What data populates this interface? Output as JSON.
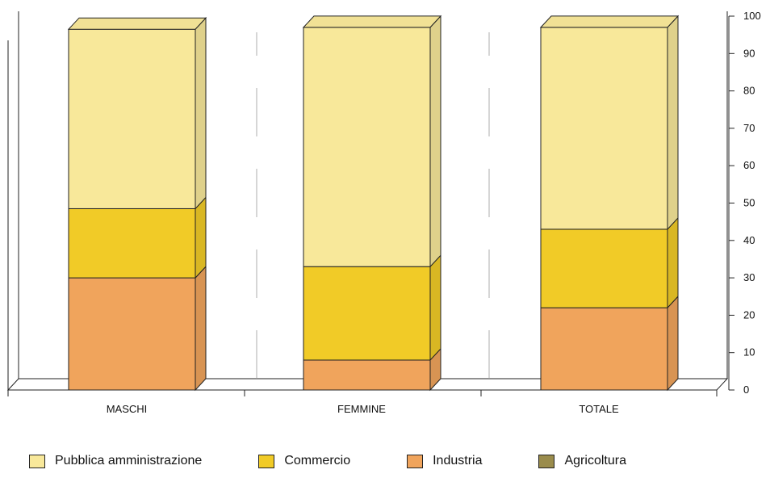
{
  "chart_data": {
    "type": "bar",
    "stacked": true,
    "categories": [
      "MASCHI",
      "FEMMINE",
      "TOTALE"
    ],
    "series": [
      {
        "name": "Agricoltura",
        "values": [
          0,
          0,
          0
        ]
      },
      {
        "name": "Industria",
        "values": [
          30,
          8,
          22
        ]
      },
      {
        "name": "Commercio",
        "values": [
          18.5,
          25,
          21
        ]
      },
      {
        "name": "Pubblica amministrazione",
        "values": [
          48,
          64,
          54
        ]
      }
    ],
    "title": "",
    "xlabel": "",
    "ylabel": "",
    "ylim": [
      0,
      100
    ],
    "yticks": [
      "0",
      "10",
      "20",
      "30",
      "40",
      "50",
      "60",
      "70",
      "80",
      "90",
      "100"
    ],
    "legend_position": "bottom",
    "grid": false
  },
  "colors": {
    "Pubblica amministrazione": "#f8e89a",
    "Commercio": "#f1cb27",
    "Industria": "#f0a45c",
    "Agricoltura": "#9a8c4c"
  },
  "legend": [
    {
      "label": "Pubblica amministrazione",
      "color": "#f8e89a"
    },
    {
      "label": "Commercio",
      "color": "#f1cb27"
    },
    {
      "label": "Industria",
      "color": "#f0a45c"
    },
    {
      "label": "Agricoltura",
      "color": "#9a8c4c"
    }
  ]
}
